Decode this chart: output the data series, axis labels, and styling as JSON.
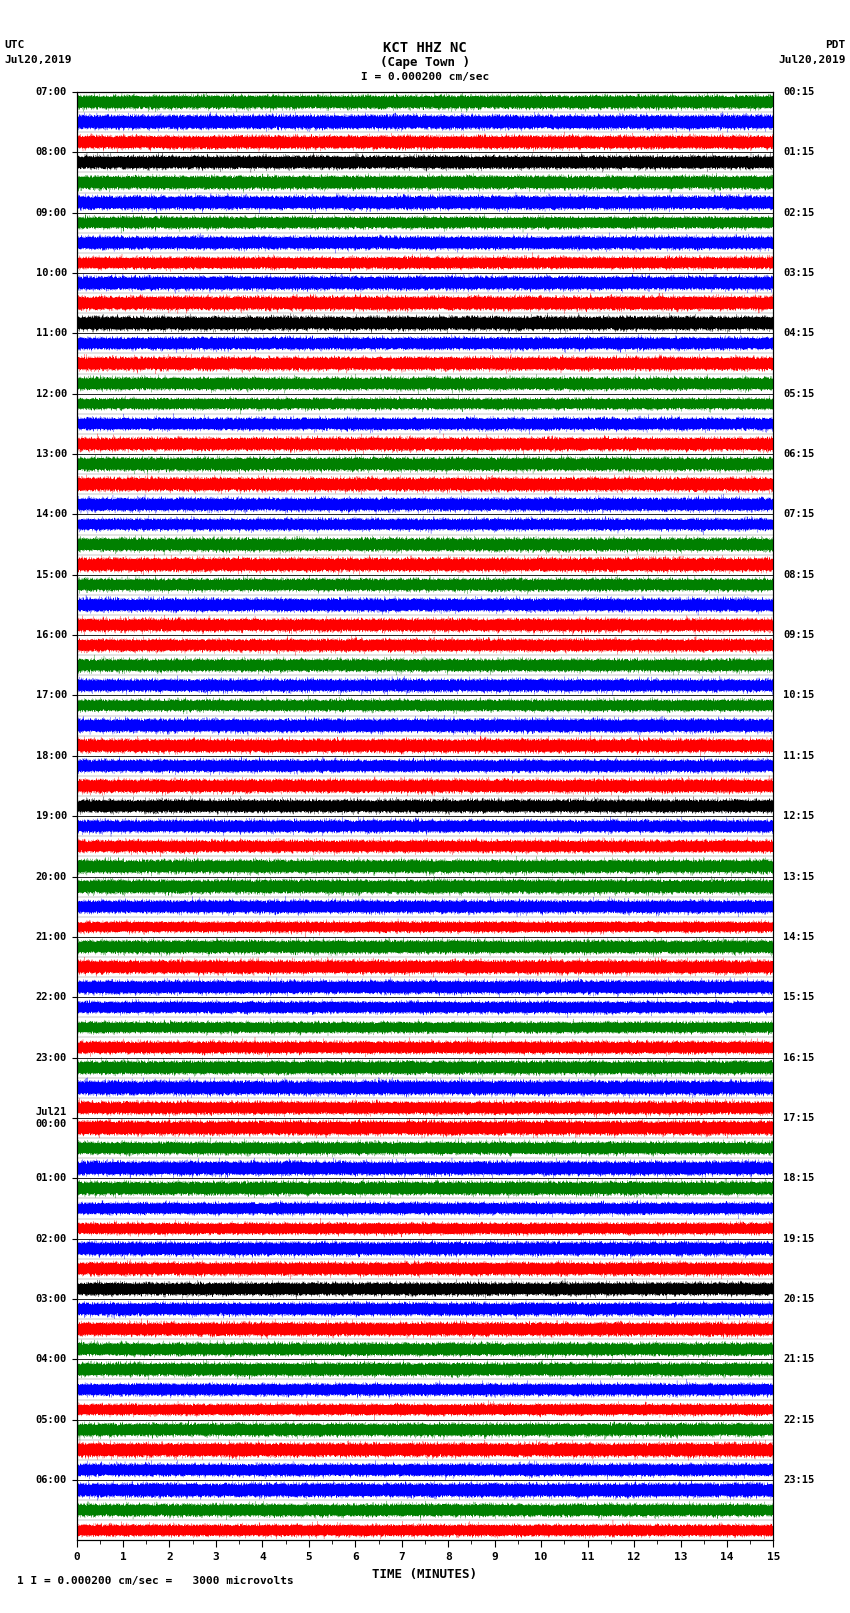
{
  "title_line1": "KCT HHZ NC",
  "title_line2": "(Cape Town )",
  "scale_text": "I = 0.000200 cm/sec",
  "xlabel": "TIME (MINUTES)",
  "bottom_note": "1 I = 0.000200 cm/sec =   3000 microvolts",
  "utc_times_left": [
    "07:00",
    "08:00",
    "09:00",
    "10:00",
    "11:00",
    "12:00",
    "13:00",
    "14:00",
    "15:00",
    "16:00",
    "17:00",
    "18:00",
    "19:00",
    "20:00",
    "21:00",
    "22:00",
    "23:00",
    "Jul21\n00:00",
    "01:00",
    "02:00",
    "03:00",
    "04:00",
    "05:00",
    "06:00"
  ],
  "pdt_times_right": [
    "00:15",
    "01:15",
    "02:15",
    "03:15",
    "04:15",
    "05:15",
    "06:15",
    "07:15",
    "08:15",
    "09:15",
    "10:15",
    "11:15",
    "12:15",
    "13:15",
    "14:15",
    "15:15",
    "16:15",
    "17:15",
    "18:15",
    "19:15",
    "20:15",
    "21:15",
    "22:15",
    "23:15"
  ],
  "n_rows": 24,
  "n_minutes": 15,
  "colors": [
    "red",
    "blue",
    "green",
    "black"
  ],
  "bg_color": "white",
  "x_ticks": [
    0,
    1,
    2,
    3,
    4,
    5,
    6,
    7,
    8,
    9,
    10,
    11,
    12,
    13,
    14,
    15
  ],
  "figsize": [
    8.5,
    16.13
  ],
  "dpi": 100,
  "n_subbands": 3,
  "subband_colors": [
    [
      "red",
      "blue",
      "green"
    ],
    [
      "blue",
      "green",
      "black"
    ],
    [
      "red",
      "blue",
      "green"
    ],
    [
      "black",
      "red",
      "blue"
    ],
    [
      "green",
      "red",
      "blue"
    ],
    [
      "red",
      "blue",
      "green"
    ],
    [
      "blue",
      "red",
      "green"
    ],
    [
      "red",
      "green",
      "blue"
    ],
    [
      "red",
      "blue",
      "green"
    ],
    [
      "blue",
      "green",
      "red"
    ],
    [
      "red",
      "blue",
      "green"
    ],
    [
      "black",
      "red",
      "blue"
    ],
    [
      "green",
      "red",
      "blue"
    ],
    [
      "red",
      "blue",
      "green"
    ],
    [
      "blue",
      "red",
      "green"
    ],
    [
      "red",
      "green",
      "blue"
    ],
    [
      "red",
      "blue",
      "green"
    ],
    [
      "blue",
      "green",
      "red"
    ],
    [
      "red",
      "blue",
      "green"
    ],
    [
      "black",
      "red",
      "blue"
    ],
    [
      "green",
      "red",
      "blue"
    ],
    [
      "red",
      "blue",
      "green"
    ],
    [
      "blue",
      "red",
      "green"
    ],
    [
      "red",
      "green",
      "blue"
    ]
  ]
}
